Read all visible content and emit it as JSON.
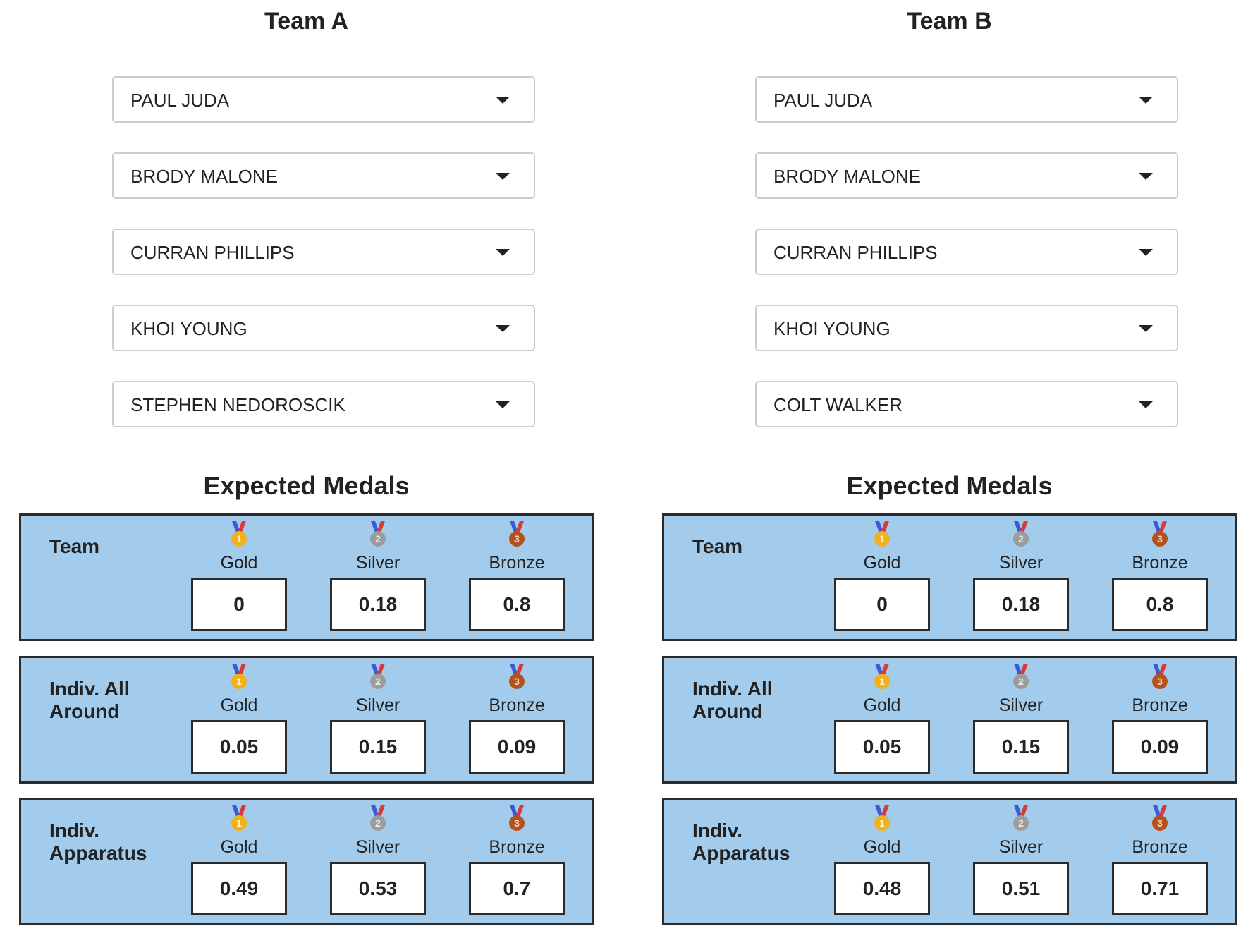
{
  "medal_labels": {
    "gold": "Gold",
    "silver": "Silver",
    "bronze": "Bronze"
  },
  "medal_icons": {
    "gold": "1",
    "silver": "2",
    "bronze": "3"
  },
  "expected_heading": "Expected Medals",
  "teams": [
    {
      "title": "Team A",
      "athletes": [
        "PAUL JUDA",
        "BRODY MALONE",
        "CURRAN PHILLIPS",
        "KHOI YOUNG",
        "STEPHEN NEDOROSCIK"
      ],
      "categories": [
        {
          "label": "Team",
          "gold": "0",
          "silver": "0.18",
          "bronze": "0.8"
        },
        {
          "label": "Indiv. All Around",
          "gold": "0.05",
          "silver": "0.15",
          "bronze": "0.09"
        },
        {
          "label": "Indiv. Apparatus",
          "gold": "0.49",
          "silver": "0.53",
          "bronze": "0.7"
        }
      ]
    },
    {
      "title": "Team B",
      "athletes": [
        "PAUL JUDA",
        "BRODY MALONE",
        "CURRAN PHILLIPS",
        "KHOI YOUNG",
        "COLT WALKER"
      ],
      "categories": [
        {
          "label": "Team",
          "gold": "0",
          "silver": "0.18",
          "bronze": "0.8"
        },
        {
          "label": "Indiv. All Around",
          "gold": "0.05",
          "silver": "0.15",
          "bronze": "0.09"
        },
        {
          "label": "Indiv. Apparatus",
          "gold": "0.48",
          "silver": "0.51",
          "bronze": "0.71"
        }
      ]
    }
  ],
  "colors": {
    "panel_bg": "#a3cbeb",
    "panel_border": "#2b2b2b",
    "gold": "#f2b01e",
    "silver": "#9c9c9c",
    "bronze": "#b4521f"
  }
}
